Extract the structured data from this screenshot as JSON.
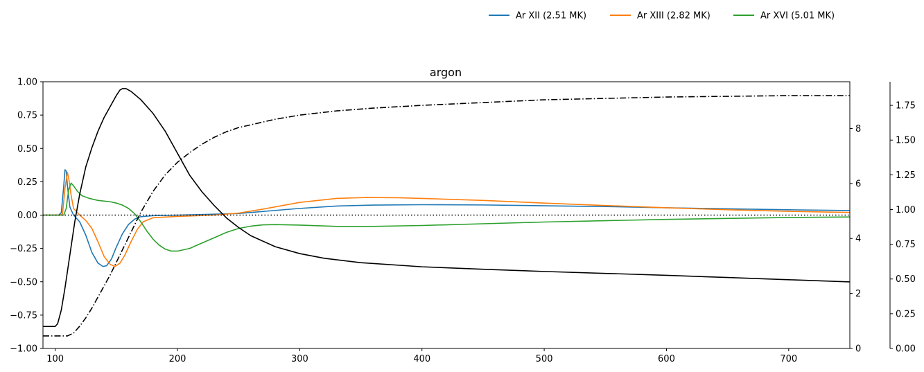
{
  "chart_data": {
    "type": "line",
    "title": "argon",
    "xlabel": "",
    "ylabel": "",
    "xlim": [
      90,
      750
    ],
    "x_ticks": [
      100,
      200,
      300,
      400,
      500,
      600,
      700
    ],
    "legend_placement": "top-right, above plot",
    "grid": false,
    "axes": [
      {
        "id": "left",
        "ylim": [
          -1.0,
          1.0
        ],
        "ticks": [
          -1.0,
          -0.75,
          -0.5,
          -0.25,
          0.0,
          0.25,
          0.5,
          0.75,
          1.0
        ],
        "tick_labels": [
          "−1.00",
          "−0.75",
          "−0.50",
          "−0.25",
          "0.00",
          "0.25",
          "0.50",
          "0.75",
          "1.00"
        ]
      },
      {
        "id": "right1",
        "ylim": [
          0,
          9.7
        ],
        "ticks": [
          0,
          2,
          4,
          6,
          8
        ],
        "tick_labels": [
          "0",
          "2",
          "4",
          "6",
          "8"
        ]
      },
      {
        "id": "right2",
        "ylim": [
          0,
          1.92
        ],
        "ticks": [
          0,
          0.25,
          0.5,
          0.75,
          1.0,
          1.25,
          1.5,
          1.75
        ],
        "tick_labels": [
          "0.00",
          "0.25",
          "0.50",
          "0.75",
          "1.00",
          "1.25",
          "1.50",
          "1.75"
        ]
      }
    ],
    "series": [
      {
        "name": "Ar XII (2.51 MK)",
        "axis": "left",
        "color": "#1f77b4",
        "style": "solid",
        "legend": true,
        "points": [
          [
            90,
            0
          ],
          [
            103,
            0
          ],
          [
            105,
            0.02
          ],
          [
            107,
            0.22
          ],
          [
            108,
            0.34
          ],
          [
            109,
            0.33
          ],
          [
            110,
            0.22
          ],
          [
            112,
            0.06
          ],
          [
            115,
            0.0
          ],
          [
            120,
            -0.05
          ],
          [
            125,
            -0.15
          ],
          [
            130,
            -0.28
          ],
          [
            135,
            -0.36
          ],
          [
            139,
            -0.385
          ],
          [
            142,
            -0.38
          ],
          [
            146,
            -0.33
          ],
          [
            150,
            -0.24
          ],
          [
            155,
            -0.14
          ],
          [
            160,
            -0.07
          ],
          [
            165,
            -0.03
          ],
          [
            170,
            -0.012
          ],
          [
            180,
            -0.004
          ],
          [
            200,
            0.0
          ],
          [
            220,
            0.004
          ],
          [
            250,
            0.012
          ],
          [
            280,
            0.035
          ],
          [
            300,
            0.05
          ],
          [
            330,
            0.068
          ],
          [
            360,
            0.075
          ],
          [
            400,
            0.078
          ],
          [
            450,
            0.076
          ],
          [
            500,
            0.07
          ],
          [
            550,
            0.064
          ],
          [
            600,
            0.055
          ],
          [
            650,
            0.047
          ],
          [
            700,
            0.04
          ],
          [
            750,
            0.034
          ]
        ]
      },
      {
        "name": "Ar XIII (2.82 MK)",
        "axis": "left",
        "color": "#ff7f0e",
        "style": "solid",
        "legend": true,
        "points": [
          [
            90,
            0
          ],
          [
            104,
            0
          ],
          [
            106,
            0.01
          ],
          [
            108,
            0.2
          ],
          [
            110,
            0.32
          ],
          [
            111,
            0.28
          ],
          [
            113,
            0.15
          ],
          [
            115,
            0.05
          ],
          [
            120,
            0.0
          ],
          [
            125,
            -0.04
          ],
          [
            130,
            -0.1
          ],
          [
            135,
            -0.2
          ],
          [
            140,
            -0.31
          ],
          [
            145,
            -0.37
          ],
          [
            149,
            -0.385
          ],
          [
            153,
            -0.36
          ],
          [
            157,
            -0.3
          ],
          [
            162,
            -0.2
          ],
          [
            167,
            -0.11
          ],
          [
            172,
            -0.05
          ],
          [
            180,
            -0.02
          ],
          [
            200,
            -0.01
          ],
          [
            230,
            0.0
          ],
          [
            250,
            0.015
          ],
          [
            270,
            0.045
          ],
          [
            300,
            0.095
          ],
          [
            330,
            0.125
          ],
          [
            355,
            0.132
          ],
          [
            380,
            0.13
          ],
          [
            400,
            0.125
          ],
          [
            450,
            0.11
          ],
          [
            500,
            0.09
          ],
          [
            550,
            0.072
          ],
          [
            600,
            0.055
          ],
          [
            650,
            0.04
          ],
          [
            700,
            0.028
          ],
          [
            750,
            0.02
          ]
        ]
      },
      {
        "name": "Ar XVI (5.01 MK)",
        "axis": "left",
        "color": "#2ca02c",
        "style": "solid",
        "legend": true,
        "points": [
          [
            90,
            0
          ],
          [
            107,
            0
          ],
          [
            109,
            0.05
          ],
          [
            111,
            0.19
          ],
          [
            113,
            0.24
          ],
          [
            115,
            0.22
          ],
          [
            118,
            0.18
          ],
          [
            122,
            0.145
          ],
          [
            128,
            0.125
          ],
          [
            135,
            0.11
          ],
          [
            145,
            0.1
          ],
          [
            150,
            0.09
          ],
          [
            155,
            0.075
          ],
          [
            160,
            0.05
          ],
          [
            165,
            0.01
          ],
          [
            170,
            -0.05
          ],
          [
            175,
            -0.12
          ],
          [
            180,
            -0.18
          ],
          [
            185,
            -0.225
          ],
          [
            190,
            -0.255
          ],
          [
            195,
            -0.27
          ],
          [
            200,
            -0.27
          ],
          [
            210,
            -0.25
          ],
          [
            220,
            -0.21
          ],
          [
            230,
            -0.17
          ],
          [
            240,
            -0.13
          ],
          [
            250,
            -0.1
          ],
          [
            260,
            -0.083
          ],
          [
            270,
            -0.073
          ],
          [
            280,
            -0.071
          ],
          [
            300,
            -0.075
          ],
          [
            330,
            -0.085
          ],
          [
            360,
            -0.085
          ],
          [
            400,
            -0.078
          ],
          [
            450,
            -0.065
          ],
          [
            500,
            -0.052
          ],
          [
            550,
            -0.042
          ],
          [
            600,
            -0.032
          ],
          [
            650,
            -0.025
          ],
          [
            700,
            -0.018
          ],
          [
            750,
            -0.014
          ]
        ]
      },
      {
        "name": "",
        "axis": "left",
        "color": "#000000",
        "style": "dotted",
        "legend": false,
        "points": [
          [
            90,
            0
          ],
          [
            750,
            0
          ]
        ]
      },
      {
        "name": "",
        "axis": "right1",
        "color": "#000000",
        "style": "solid",
        "legend": false,
        "points": [
          [
            90,
            0.8
          ],
          [
            100,
            0.8
          ],
          [
            102,
            0.9
          ],
          [
            105,
            1.4
          ],
          [
            108,
            2.2
          ],
          [
            112,
            3.4
          ],
          [
            116,
            4.6
          ],
          [
            120,
            5.6
          ],
          [
            125,
            6.6
          ],
          [
            130,
            7.3
          ],
          [
            135,
            7.9
          ],
          [
            140,
            8.4
          ],
          [
            145,
            8.8
          ],
          [
            150,
            9.2
          ],
          [
            153,
            9.4
          ],
          [
            155,
            9.45
          ],
          [
            158,
            9.45
          ],
          [
            162,
            9.35
          ],
          [
            170,
            9.05
          ],
          [
            180,
            8.55
          ],
          [
            190,
            7.9
          ],
          [
            200,
            7.1
          ],
          [
            210,
            6.3
          ],
          [
            220,
            5.7
          ],
          [
            230,
            5.2
          ],
          [
            240,
            4.75
          ],
          [
            250,
            4.4
          ],
          [
            260,
            4.1
          ],
          [
            280,
            3.7
          ],
          [
            300,
            3.45
          ],
          [
            320,
            3.28
          ],
          [
            350,
            3.12
          ],
          [
            400,
            2.97
          ],
          [
            450,
            2.88
          ],
          [
            500,
            2.8
          ],
          [
            550,
            2.73
          ],
          [
            600,
            2.66
          ],
          [
            650,
            2.58
          ],
          [
            700,
            2.5
          ],
          [
            750,
            2.42
          ]
        ]
      },
      {
        "name": "",
        "axis": "right2",
        "color": "#000000",
        "style": "dashdot",
        "legend": false,
        "points": [
          [
            90,
            0.09
          ],
          [
            110,
            0.09
          ],
          [
            115,
            0.11
          ],
          [
            120,
            0.16
          ],
          [
            125,
            0.22
          ],
          [
            130,
            0.29
          ],
          [
            135,
            0.37
          ],
          [
            140,
            0.45
          ],
          [
            145,
            0.53
          ],
          [
            150,
            0.62
          ],
          [
            155,
            0.71
          ],
          [
            160,
            0.8
          ],
          [
            170,
            0.98
          ],
          [
            180,
            1.13
          ],
          [
            190,
            1.25
          ],
          [
            200,
            1.34
          ],
          [
            210,
            1.41
          ],
          [
            220,
            1.47
          ],
          [
            230,
            1.52
          ],
          [
            240,
            1.56
          ],
          [
            250,
            1.59
          ],
          [
            260,
            1.61
          ],
          [
            280,
            1.65
          ],
          [
            300,
            1.68
          ],
          [
            330,
            1.71
          ],
          [
            360,
            1.73
          ],
          [
            400,
            1.75
          ],
          [
            450,
            1.77
          ],
          [
            500,
            1.79
          ],
          [
            550,
            1.8
          ],
          [
            600,
            1.81
          ],
          [
            650,
            1.815
          ],
          [
            700,
            1.82
          ],
          [
            750,
            1.82
          ]
        ]
      }
    ]
  }
}
